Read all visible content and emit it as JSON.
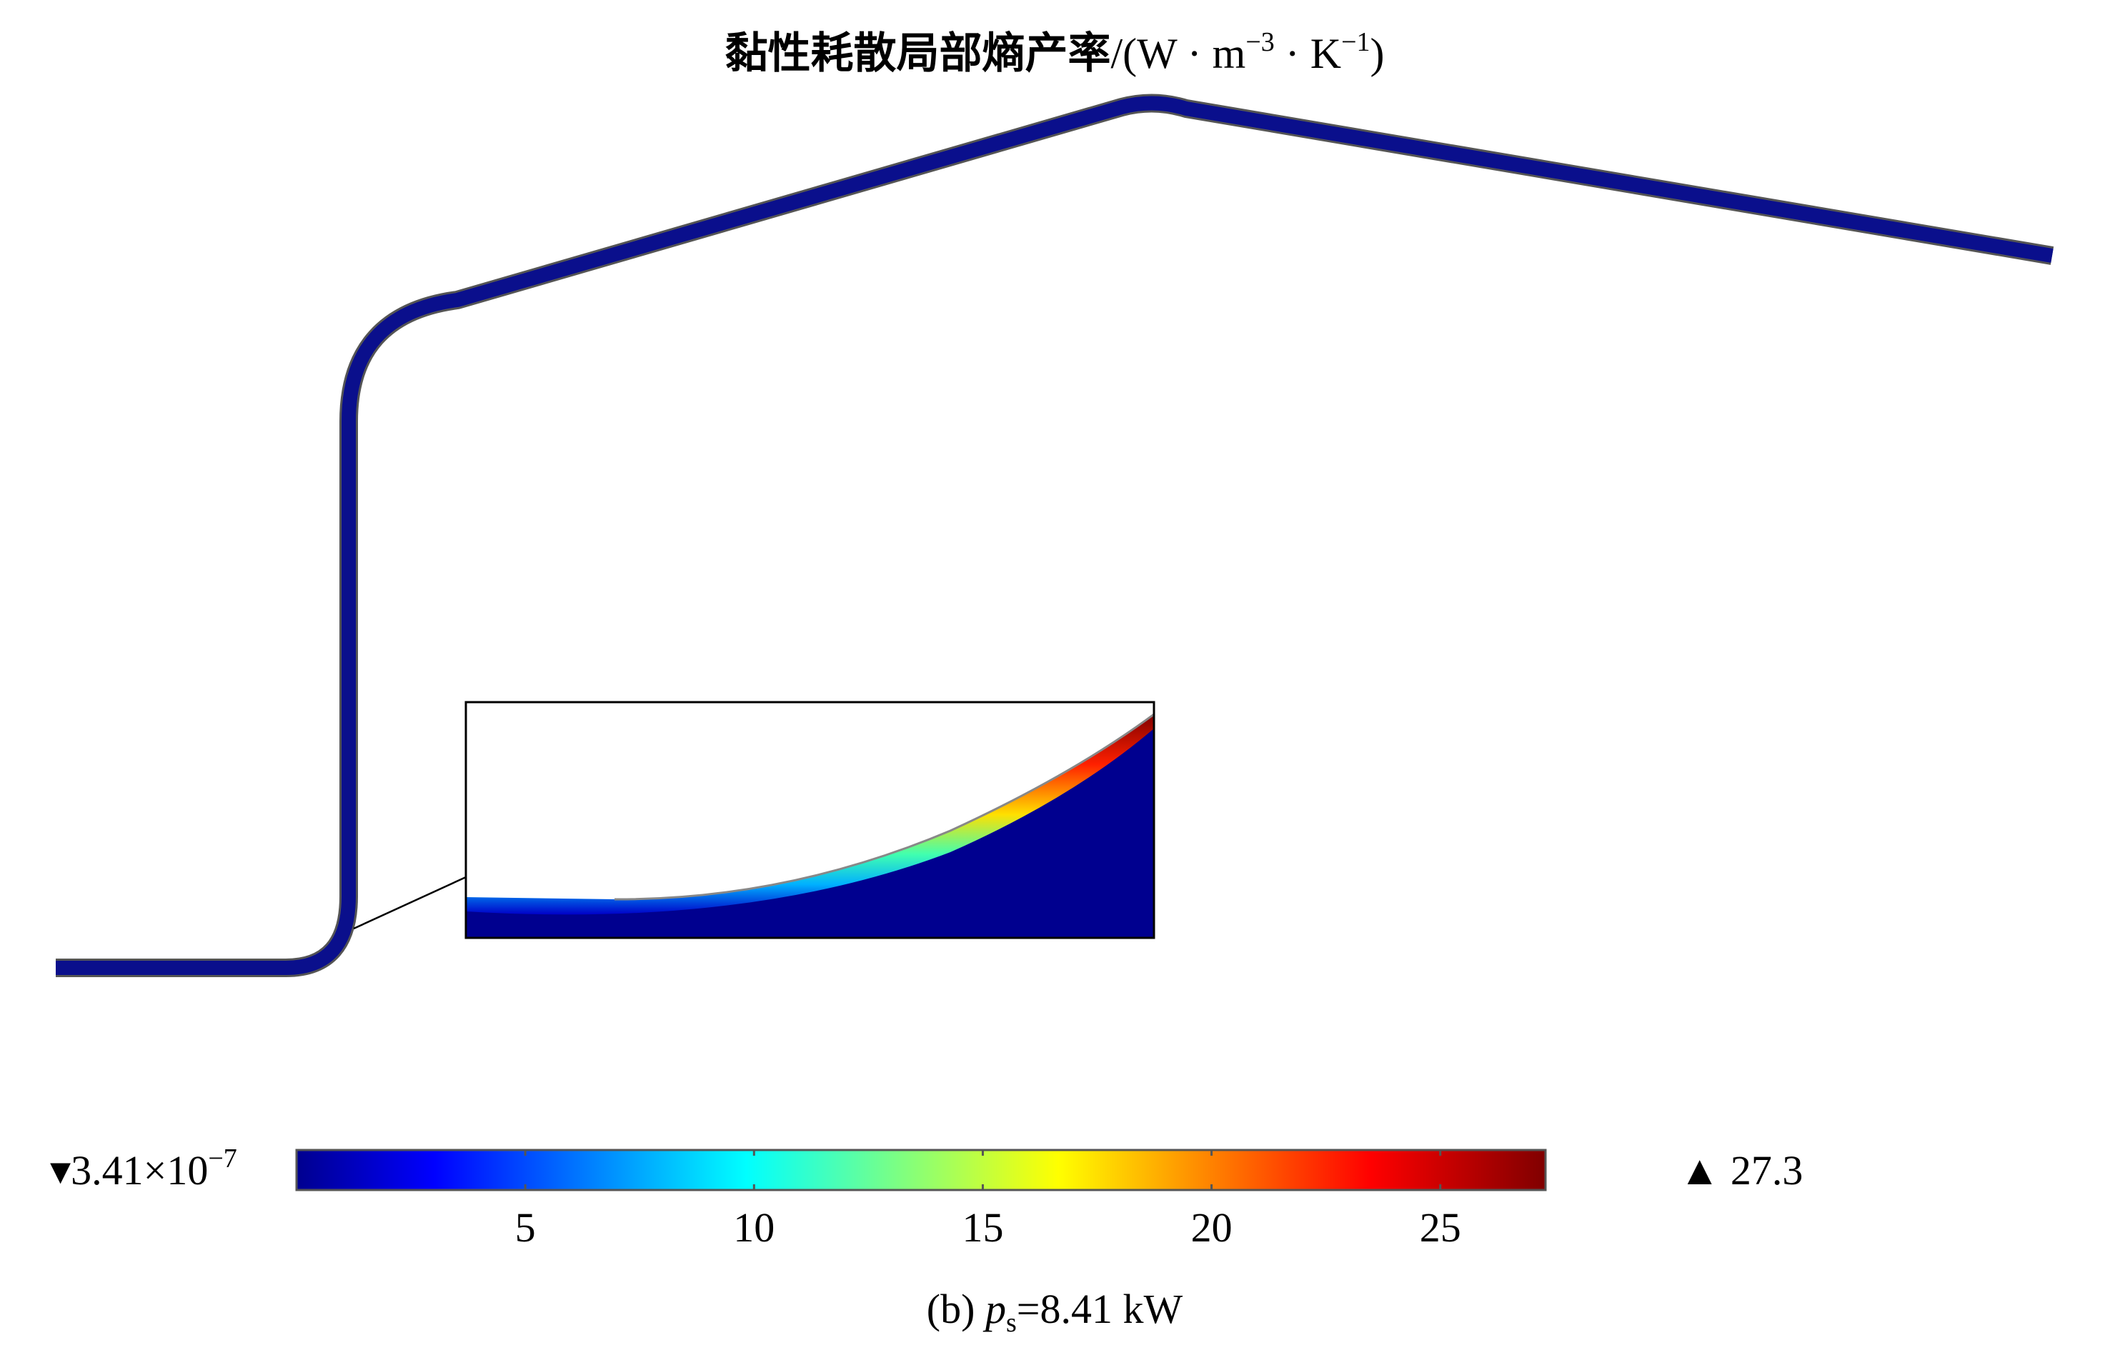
{
  "title": {
    "cjk": "黏性耗散局部熵产率",
    "unit_open": "/(W · m",
    "unit_exp1": "−3",
    "unit_mid": " · K",
    "unit_exp2": "−1",
    "unit_close": ")"
  },
  "colorbar": {
    "min_label": "▾3.41×10",
    "min_exp": "−7",
    "max_label": "▲ 27.3",
    "min": 3.41e-07,
    "max": 27.3,
    "ticks": [
      {
        "value": 5,
        "label": "5"
      },
      {
        "value": 10,
        "label": "10"
      },
      {
        "value": 15,
        "label": "15"
      },
      {
        "value": 20,
        "label": "20"
      },
      {
        "value": 25,
        "label": "25"
      }
    ],
    "colormap": "jet",
    "colors": [
      "#00008f",
      "#0000ff",
      "#00ffff",
      "#ffff00",
      "#ff0000",
      "#800000"
    ]
  },
  "caption": {
    "prefix": "(b) ",
    "var": "p",
    "sub": "s",
    "suffix": "=8.41 kW"
  },
  "channel": {
    "fill_color": "#0a0f8c",
    "edge_color": "#555555"
  }
}
